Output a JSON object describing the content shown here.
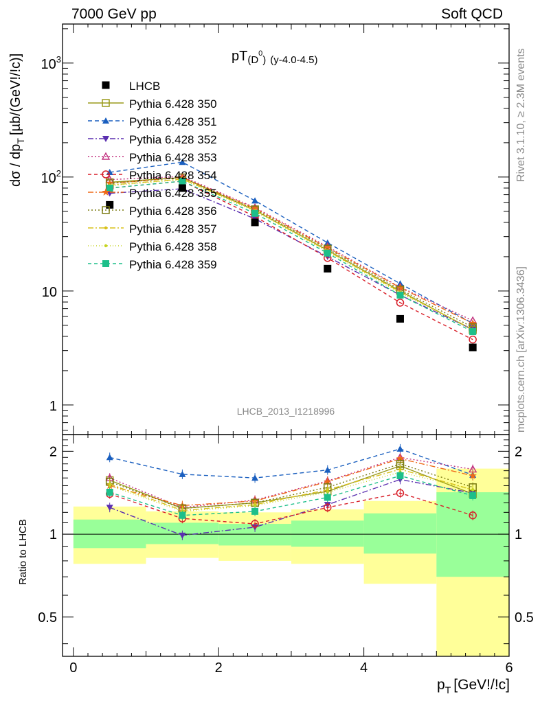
{
  "header": {
    "left": "7000 GeV pp",
    "right": "Soft QCD"
  },
  "side": {
    "rivet": "Rivet 3.1.10, ≥ 2.3M events",
    "mcplots": "mcplots.cern.ch [arXiv:1306.3436]"
  },
  "chart_data": {
    "type": "line",
    "title": "pT(D⁰) (y-4.0-4.5)",
    "title_main": "pT",
    "title_paren_open": "(D",
    "title_sup": "0",
    "title_paren_close": ")",
    "title_sub": "(y-4.0-4.5)",
    "watermark": "LHCB_2013_I1218996",
    "ylabel_main": "dσ / dp",
    "ylabel_sub": "T",
    "ylabel_units": "[µb/(GeV!/!c)]",
    "ylabel_ratio": "Ratio to LHCB",
    "xlabel_main": "p",
    "xlabel_sub": "T",
    "xlabel_units": "[GeV!/!c]",
    "xlim": [
      -0.15,
      6.0
    ],
    "ylim_main": [
      0.55,
      2200
    ],
    "ylim_ratio": [
      0.36,
      2.3
    ],
    "y_scale": "log",
    "main_yticks": [
      {
        "value": 1,
        "label": "1"
      },
      {
        "value": 10,
        "label": "10"
      },
      {
        "value": 100,
        "label": "10",
        "exp": "2"
      },
      {
        "value": 1000,
        "label": "10",
        "exp": "3"
      }
    ],
    "ratio_yticks": [
      {
        "value": 0.5,
        "label": "0.5"
      },
      {
        "value": 1,
        "label": "1"
      },
      {
        "value": 2,
        "label": "2"
      }
    ],
    "xticks": [
      {
        "value": 0,
        "label": "0"
      },
      {
        "value": 2,
        "label": "2"
      },
      {
        "value": 4,
        "label": "4"
      },
      {
        "value": 6,
        "label": "6"
      }
    ],
    "bins": [
      [
        0,
        1
      ],
      [
        1,
        2
      ],
      [
        2,
        3
      ],
      [
        3,
        4
      ],
      [
        4,
        5
      ],
      [
        5,
        6
      ]
    ],
    "x": [
      0.5,
      1.5,
      2.5,
      3.5,
      4.5,
      5.5
    ],
    "data": {
      "name": "LHCB",
      "values": [
        57,
        80,
        40,
        15.7,
        5.7,
        3.2
      ],
      "band_green": [
        [
          0.89,
          1.13
        ],
        [
          0.92,
          1.1
        ],
        [
          0.91,
          1.09
        ],
        [
          0.9,
          1.12
        ],
        [
          0.85,
          1.19
        ],
        [
          0.7,
          1.42
        ]
      ],
      "band_yellow": [
        [
          0.78,
          1.26
        ],
        [
          0.82,
          1.21
        ],
        [
          0.8,
          1.2
        ],
        [
          0.78,
          1.23
        ],
        [
          0.66,
          1.32
        ],
        [
          0.3,
          1.73
        ]
      ]
    },
    "series": [
      {
        "name": "Pythia 6.428 350",
        "color": "#9a9a1a",
        "dash": "",
        "marker": "square-open",
        "values": [
          90,
          99,
          51,
          22.8,
          10.0,
          4.55
        ],
        "ratio": [
          1.57,
          1.24,
          1.3,
          1.43,
          1.77,
          1.4
        ]
      },
      {
        "name": "Pythia 6.428 351",
        "color": "#1a5fbf",
        "dash": "6,4",
        "marker": "tri-up-filled",
        "values": [
          110,
          135,
          62,
          26.5,
          11.6,
          5.2
        ],
        "ratio": [
          1.9,
          1.65,
          1.6,
          1.71,
          2.04,
          1.64
        ]
      },
      {
        "name": "Pythia 6.428 352",
        "color": "#5b2fb0",
        "dash": "8,3,2,3",
        "marker": "tri-down-filled",
        "values": [
          72,
          79,
          43,
          20,
          9.2,
          4.6
        ],
        "ratio": [
          1.25,
          0.99,
          1.06,
          1.28,
          1.58,
          1.41
        ]
      },
      {
        "name": "Pythia 6.428 353",
        "color": "#c2307f",
        "dash": "2,3",
        "marker": "tri-up-open",
        "values": [
          95,
          101,
          54,
          24.5,
          10.8,
          5.5
        ],
        "ratio": [
          1.6,
          1.25,
          1.33,
          1.56,
          1.9,
          1.72
        ]
      },
      {
        "name": "Pythia 6.428 354",
        "color": "#d81e28",
        "dash": "5,4",
        "marker": "circle-open",
        "values": [
          80,
          92,
          45,
          19.5,
          7.9,
          3.75
        ],
        "ratio": [
          1.4,
          1.14,
          1.09,
          1.25,
          1.41,
          1.17
        ]
      },
      {
        "name": "Pythia 6.428 355",
        "color": "#ef6a18",
        "dash": "8,3,2,3",
        "marker": "star-filled",
        "values": [
          88,
          99,
          53,
          24.0,
          10.7,
          5.2
        ],
        "ratio": [
          1.5,
          1.27,
          1.32,
          1.55,
          1.88,
          1.63
        ]
      },
      {
        "name": "Pythia 6.428 356",
        "color": "#7a7a10",
        "dash": "2,3",
        "marker": "square-open",
        "values": [
          88,
          99,
          52,
          23.5,
          10.3,
          4.8
        ],
        "ratio": [
          1.55,
          1.24,
          1.3,
          1.48,
          1.8,
          1.48
        ]
      },
      {
        "name": "Pythia 6.428 357",
        "color": "#d8c018",
        "dash": "8,3,2,3",
        "marker": "dot",
        "values": [
          85,
          96,
          51,
          22.5,
          9.8,
          4.6
        ],
        "ratio": [
          1.52,
          1.22,
          1.28,
          1.45,
          1.72,
          1.45
        ]
      },
      {
        "name": "Pythia 6.428 358",
        "color": "#c6d420",
        "dash": "1,3",
        "marker": "dot",
        "values": [
          84,
          95,
          50,
          22.0,
          9.6,
          4.6
        ],
        "ratio": [
          1.5,
          1.21,
          1.27,
          1.42,
          1.68,
          1.45
        ]
      },
      {
        "name": "Pythia 6.428 359",
        "color": "#1dbf8a",
        "dash": "5,4",
        "marker": "square-filled",
        "values": [
          80,
          92,
          48,
          21.5,
          9.2,
          4.4
        ],
        "ratio": [
          1.42,
          1.17,
          1.21,
          1.36,
          1.63,
          1.38
        ]
      }
    ]
  }
}
